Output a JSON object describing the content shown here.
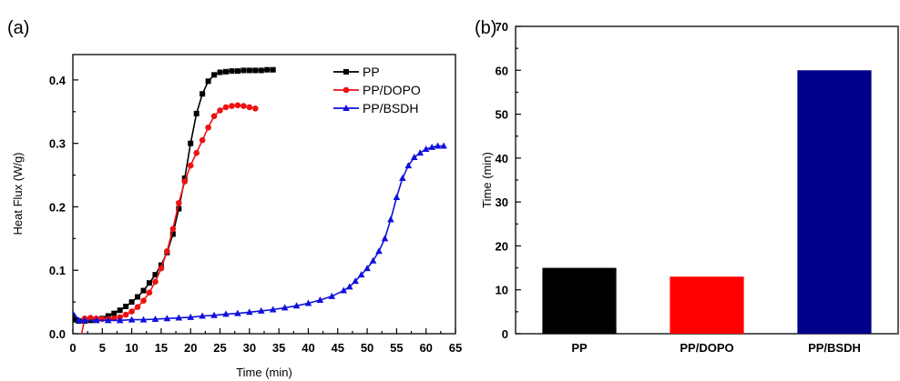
{
  "chart_data": [
    {
      "type": "line",
      "panel_label": "(a)",
      "xlabel": "Time (min)",
      "ylabel": "Heat Flux (W/g)",
      "xlim": [
        0,
        65
      ],
      "ylim": [
        0,
        0.44
      ],
      "xticks": [
        0,
        5,
        10,
        15,
        20,
        25,
        30,
        35,
        40,
        45,
        50,
        55,
        60,
        65
      ],
      "yticks": [
        0.0,
        0.1,
        0.2,
        0.3,
        0.4
      ],
      "ytick_labels": [
        "0.0",
        "0.1",
        "0.2",
        "0.3",
        "0.4"
      ],
      "legend_position": "top-right",
      "grid": false,
      "series": [
        {
          "name": "PP",
          "color": "#000000",
          "marker": "square",
          "points": [
            [
              0,
              0.032
            ],
            [
              0.5,
              0.022
            ],
            [
              1,
              0.02
            ],
            [
              2,
              0.02
            ],
            [
              3,
              0.021
            ],
            [
              4,
              0.022
            ],
            [
              5,
              0.024
            ],
            [
              6,
              0.028
            ],
            [
              7,
              0.032
            ],
            [
              8,
              0.037
            ],
            [
              9,
              0.043
            ],
            [
              10,
              0.05
            ],
            [
              11,
              0.058
            ],
            [
              12,
              0.068
            ],
            [
              13,
              0.08
            ],
            [
              14,
              0.093
            ],
            [
              15,
              0.108
            ],
            [
              16,
              0.128
            ],
            [
              17,
              0.157
            ],
            [
              18,
              0.197
            ],
            [
              19,
              0.245
            ],
            [
              20,
              0.3
            ],
            [
              21,
              0.347
            ],
            [
              22,
              0.378
            ],
            [
              23,
              0.398
            ],
            [
              24,
              0.408
            ],
            [
              25,
              0.412
            ],
            [
              26,
              0.413
            ],
            [
              27,
              0.414
            ],
            [
              28,
              0.414
            ],
            [
              29,
              0.415
            ],
            [
              30,
              0.415
            ],
            [
              31,
              0.415
            ],
            [
              32,
              0.415
            ],
            [
              33,
              0.416
            ],
            [
              34,
              0.416
            ]
          ]
        },
        {
          "name": "PP/DOPO",
          "color": "#ee1111",
          "marker": "circle",
          "points": [
            [
              1.5,
              0.0
            ],
            [
              2,
              0.024
            ],
            [
              3,
              0.025
            ],
            [
              4,
              0.024
            ],
            [
              5,
              0.023
            ],
            [
              6,
              0.023
            ],
            [
              7,
              0.024
            ],
            [
              8,
              0.026
            ],
            [
              9,
              0.03
            ],
            [
              10,
              0.035
            ],
            [
              11,
              0.042
            ],
            [
              12,
              0.052
            ],
            [
              13,
              0.065
            ],
            [
              14,
              0.082
            ],
            [
              15,
              0.103
            ],
            [
              16,
              0.13
            ],
            [
              17,
              0.165
            ],
            [
              18,
              0.206
            ],
            [
              19,
              0.24
            ],
            [
              20,
              0.265
            ],
            [
              21,
              0.285
            ],
            [
              22,
              0.305
            ],
            [
              23,
              0.325
            ],
            [
              24,
              0.343
            ],
            [
              25,
              0.352
            ],
            [
              26,
              0.357
            ],
            [
              27,
              0.359
            ],
            [
              28,
              0.36
            ],
            [
              29,
              0.359
            ],
            [
              30,
              0.357
            ],
            [
              31,
              0.355
            ]
          ]
        },
        {
          "name": "PP/BSDH",
          "color": "#1010dd",
          "marker": "triangle",
          "points": [
            [
              0,
              0.035
            ],
            [
              1,
              0.021
            ],
            [
              2,
              0.021
            ],
            [
              4,
              0.021
            ],
            [
              6,
              0.021
            ],
            [
              8,
              0.021
            ],
            [
              10,
              0.022
            ],
            [
              12,
              0.022
            ],
            [
              14,
              0.023
            ],
            [
              16,
              0.024
            ],
            [
              18,
              0.025
            ],
            [
              20,
              0.026
            ],
            [
              22,
              0.028
            ],
            [
              24,
              0.029
            ],
            [
              26,
              0.031
            ],
            [
              28,
              0.032
            ],
            [
              30,
              0.034
            ],
            [
              32,
              0.036
            ],
            [
              34,
              0.038
            ],
            [
              36,
              0.041
            ],
            [
              38,
              0.044
            ],
            [
              40,
              0.048
            ],
            [
              42,
              0.053
            ],
            [
              44,
              0.059
            ],
            [
              46,
              0.068
            ],
            [
              47,
              0.074
            ],
            [
              48,
              0.083
            ],
            [
              49,
              0.093
            ],
            [
              50,
              0.103
            ],
            [
              51,
              0.115
            ],
            [
              52,
              0.13
            ],
            [
              53,
              0.15
            ],
            [
              54,
              0.18
            ],
            [
              55,
              0.215
            ],
            [
              56,
              0.245
            ],
            [
              57,
              0.265
            ],
            [
              58,
              0.278
            ],
            [
              59,
              0.285
            ],
            [
              60,
              0.291
            ],
            [
              61,
              0.294
            ],
            [
              62,
              0.296
            ],
            [
              63,
              0.296
            ]
          ]
        }
      ]
    },
    {
      "type": "bar",
      "panel_label": "(b)",
      "xlabel": "",
      "ylabel": "Time (min)",
      "ylim": [
        0,
        70
      ],
      "yticks": [
        0,
        10,
        20,
        30,
        40,
        50,
        60,
        70
      ],
      "grid": false,
      "categories": [
        "PP",
        "PP/DOPO",
        "PP/BSDH"
      ],
      "values": [
        15,
        13,
        60
      ],
      "colors": [
        "#000000",
        "#ff0000",
        "#00008b"
      ]
    }
  ]
}
